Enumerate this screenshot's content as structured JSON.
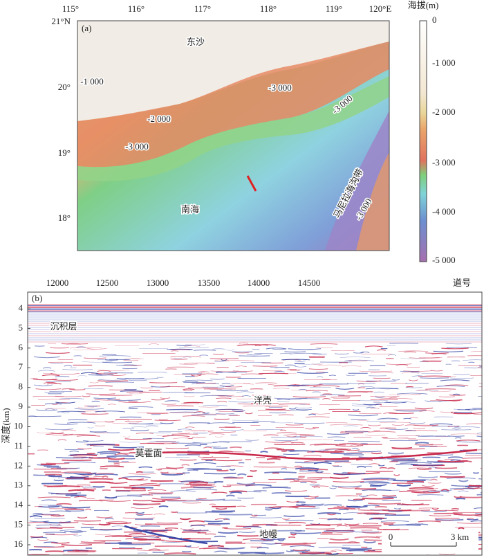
{
  "panel_a": {
    "label": "(a)",
    "lon_ticks": [
      "115°",
      "116°",
      "117°",
      "118°",
      "119°",
      "120°E"
    ],
    "lat_ticks": [
      "21°N",
      "20°",
      "19°",
      "18°"
    ],
    "place_labels": [
      "东沙",
      "南海",
      "马尼拉海沟带"
    ],
    "contour_labels": [
      "-1 000",
      "-2 000",
      "-3 000",
      "-3 000",
      "-3 000",
      "-3 000"
    ],
    "colorbar": {
      "title": "海拔(m)",
      "ticks": [
        "0",
        "-1 000",
        "-2 000",
        "-3 000",
        "-4 000",
        "-5 000"
      ]
    }
  },
  "panel_b": {
    "label": "(b)",
    "trace_ticks": [
      12000,
      12500,
      13000,
      13500,
      14000,
      14500
    ],
    "trace_axis_title": "道号",
    "depth_ticks": [
      4,
      5,
      6,
      7,
      8,
      9,
      10,
      11,
      12,
      13,
      14,
      15,
      16
    ],
    "depth_axis_title": "深度(km)",
    "layer_labels": [
      "沉积层",
      "洋壳",
      "莫霍面",
      "地幔"
    ],
    "scale_bar": [
      "0",
      "3 km"
    ]
  }
}
